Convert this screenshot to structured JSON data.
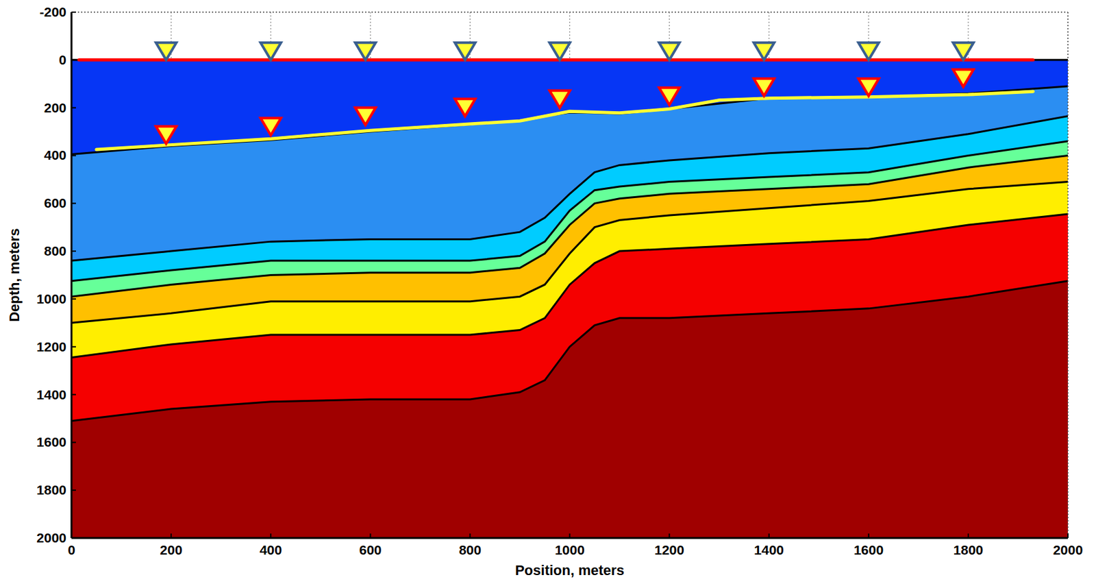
{
  "chart_data": {
    "type": "cross_section",
    "xlabel": "Position, meters",
    "ylabel": "Depth, meters",
    "xlim": [
      0,
      2000
    ],
    "ylim": [
      2000,
      -200
    ],
    "xticks": [
      0,
      200,
      400,
      600,
      800,
      1000,
      1200,
      1400,
      1600,
      1800,
      2000
    ],
    "yticks": [
      -200,
      0,
      200,
      400,
      600,
      800,
      1000,
      1200,
      1400,
      1600,
      1800,
      2000
    ],
    "grid": true,
    "series": [
      {
        "type": "area",
        "color": "#0636f5",
        "x": [
          0,
          2000
        ],
        "values": [
          0,
          0
        ]
      },
      {
        "type": "area",
        "color": "#2b8ef2",
        "x": [
          0,
          200,
          400,
          600,
          800,
          900,
          950,
          1000,
          1050,
          1100,
          1200,
          1400,
          1600,
          1800,
          2000
        ],
        "values": [
          395,
          360,
          335,
          300,
          270,
          255,
          235,
          220,
          222,
          225,
          205,
          160,
          155,
          140,
          110
        ]
      },
      {
        "type": "area",
        "color": "#00ccff",
        "x": [
          0,
          200,
          400,
          600,
          800,
          900,
          950,
          1000,
          1050,
          1100,
          1200,
          1400,
          1600,
          1800,
          2000
        ],
        "values": [
          840,
          800,
          760,
          750,
          750,
          720,
          660,
          560,
          470,
          440,
          420,
          390,
          370,
          310,
          235
        ]
      },
      {
        "type": "area",
        "color": "#66ff99",
        "x": [
          0,
          200,
          400,
          600,
          800,
          900,
          950,
          1000,
          1050,
          1100,
          1200,
          1400,
          1600,
          1800,
          2000
        ],
        "values": [
          925,
          880,
          840,
          840,
          840,
          820,
          760,
          630,
          545,
          530,
          510,
          490,
          470,
          400,
          340
        ]
      },
      {
        "type": "area",
        "color": "#ffc000",
        "x": [
          0,
          200,
          400,
          600,
          800,
          900,
          950,
          1000,
          1050,
          1100,
          1200,
          1400,
          1600,
          1800,
          2000
        ],
        "values": [
          990,
          940,
          900,
          890,
          890,
          870,
          810,
          690,
          600,
          580,
          560,
          540,
          520,
          450,
          400
        ]
      },
      {
        "type": "area",
        "color": "#ffee00",
        "x": [
          0,
          200,
          400,
          600,
          800,
          900,
          950,
          1000,
          1050,
          1100,
          1200,
          1400,
          1600,
          1800,
          2000
        ],
        "values": [
          1100,
          1060,
          1010,
          1010,
          1010,
          990,
          940,
          810,
          700,
          670,
          650,
          620,
          590,
          540,
          510
        ]
      },
      {
        "type": "area",
        "color": "#f50000",
        "x": [
          0,
          200,
          400,
          600,
          800,
          900,
          950,
          1000,
          1050,
          1100,
          1200,
          1400,
          1600,
          1800,
          2000
        ],
        "values": [
          1245,
          1190,
          1150,
          1150,
          1150,
          1130,
          1080,
          940,
          850,
          800,
          790,
          770,
          750,
          690,
          645
        ]
      },
      {
        "type": "area",
        "color": "#a00000",
        "x": [
          0,
          200,
          400,
          600,
          800,
          900,
          950,
          1000,
          1050,
          1100,
          1200,
          1400,
          1600,
          1800,
          2000
        ],
        "values": [
          1510,
          1460,
          1430,
          1420,
          1420,
          1390,
          1340,
          1200,
          1110,
          1080,
          1080,
          1060,
          1040,
          990,
          925
        ]
      },
      {
        "type": "line",
        "color": "#ffff33",
        "x": [
          50,
          200,
          400,
          600,
          800,
          900,
          1000,
          1100,
          1200,
          1300,
          1400,
          1600,
          1800,
          1930
        ],
        "values": [
          375,
          355,
          330,
          295,
          268,
          255,
          215,
          222,
          205,
          168,
          160,
          155,
          145,
          132
        ]
      },
      {
        "type": "line",
        "color": "#ff0000",
        "x": [
          15,
          1930
        ],
        "values": [
          0,
          0
        ]
      },
      {
        "type": "scatter",
        "marker": "triangle",
        "color": "#3a5f8f",
        "x": [
          190,
          400,
          590,
          790,
          980,
          1200,
          1390,
          1600,
          1790
        ],
        "values": [
          -40,
          -40,
          -40,
          -40,
          -40,
          -40,
          -40,
          -40,
          -40
        ]
      },
      {
        "type": "scatter",
        "marker": "triangle",
        "color": "#ff0000",
        "x": [
          190,
          400,
          590,
          790,
          980,
          1200,
          1390,
          1600,
          1790
        ],
        "values": [
          310,
          275,
          232,
          195,
          160,
          148,
          110,
          110,
          72
        ]
      }
    ]
  }
}
